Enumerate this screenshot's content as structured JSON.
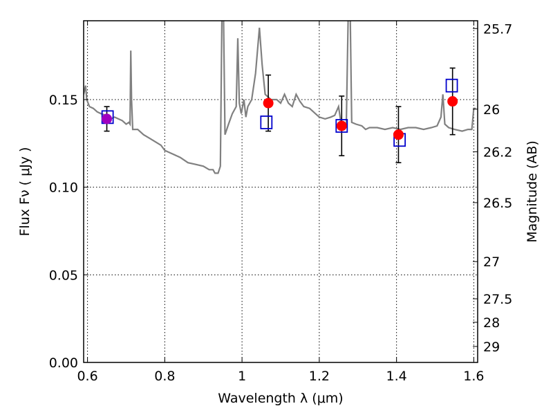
{
  "chart_data": {
    "type": "scatter",
    "title": "",
    "xlabel": "Wavelength  λ (μm)",
    "ylabel": "Flux  Fν  ( μJy )",
    "y2label": "Magnitude (AB)",
    "xlim": [
      0.59,
      1.61
    ],
    "ylim": [
      0.0,
      0.195
    ],
    "grid": true,
    "x_ticks": [
      {
        "value": 0.6,
        "label": "0.6"
      },
      {
        "value": 0.8,
        "label": "0.8"
      },
      {
        "value": 1.0,
        "label": "1"
      },
      {
        "value": 1.2,
        "label": "1.2"
      },
      {
        "value": 1.4,
        "label": "1.4"
      },
      {
        "value": 1.6,
        "label": "1.6"
      }
    ],
    "y_ticks": [
      {
        "value": 0.0,
        "label": "0.00"
      },
      {
        "value": 0.05,
        "label": "0.05"
      },
      {
        "value": 0.1,
        "label": "0.10"
      },
      {
        "value": 0.15,
        "label": "0.15"
      }
    ],
    "y2_ticks": [
      {
        "mag": 25.7,
        "label": "25.7"
      },
      {
        "mag": 26,
        "label": "26"
      },
      {
        "mag": 26.2,
        "label": "26.2"
      },
      {
        "mag": 26.5,
        "label": "26.5"
      },
      {
        "mag": 27,
        "label": "27"
      },
      {
        "mag": 27.5,
        "label": "27.5"
      },
      {
        "mag": 28,
        "label": "28"
      },
      {
        "mag": 29,
        "label": "29"
      }
    ],
    "series": [
      {
        "type": "line",
        "color": "#808080",
        "points": [
          [
            0.59,
            0.153
          ],
          [
            0.595,
            0.158
          ],
          [
            0.598,
            0.15
          ],
          [
            0.605,
            0.146
          ],
          [
            0.615,
            0.145
          ],
          [
            0.625,
            0.143
          ],
          [
            0.635,
            0.142
          ],
          [
            0.648,
            0.141
          ],
          [
            0.66,
            0.139
          ],
          [
            0.67,
            0.14
          ],
          [
            0.68,
            0.139
          ],
          [
            0.69,
            0.138
          ],
          [
            0.7,
            0.136
          ],
          [
            0.707,
            0.137
          ],
          [
            0.71,
            0.136
          ],
          [
            0.712,
            0.178
          ],
          [
            0.714,
            0.15
          ],
          [
            0.717,
            0.133
          ],
          [
            0.73,
            0.133
          ],
          [
            0.745,
            0.13
          ],
          [
            0.76,
            0.128
          ],
          [
            0.775,
            0.126
          ],
          [
            0.79,
            0.124
          ],
          [
            0.8,
            0.121
          ],
          [
            0.82,
            0.119
          ],
          [
            0.84,
            0.117
          ],
          [
            0.86,
            0.114
          ],
          [
            0.88,
            0.113
          ],
          [
            0.9,
            0.112
          ],
          [
            0.915,
            0.11
          ],
          [
            0.925,
            0.11
          ],
          [
            0.93,
            0.108
          ],
          [
            0.938,
            0.108
          ],
          [
            0.944,
            0.112
          ],
          [
            0.948,
            0.2
          ],
          [
            0.952,
            0.2
          ],
          [
            0.956,
            0.13
          ],
          [
            0.965,
            0.136
          ],
          [
            0.975,
            0.142
          ],
          [
            0.985,
            0.146
          ],
          [
            0.989,
            0.185
          ],
          [
            0.993,
            0.148
          ],
          [
            0.998,
            0.142
          ],
          [
            1.005,
            0.15
          ],
          [
            1.01,
            0.14
          ],
          [
            1.015,
            0.146
          ],
          [
            1.025,
            0.15
          ],
          [
            1.035,
            0.165
          ],
          [
            1.045,
            0.191
          ],
          [
            1.052,
            0.17
          ],
          [
            1.06,
            0.153
          ],
          [
            1.075,
            0.15
          ],
          [
            1.09,
            0.15
          ],
          [
            1.1,
            0.148
          ],
          [
            1.11,
            0.153
          ],
          [
            1.12,
            0.148
          ],
          [
            1.13,
            0.146
          ],
          [
            1.14,
            0.153
          ],
          [
            1.15,
            0.149
          ],
          [
            1.16,
            0.146
          ],
          [
            1.175,
            0.145
          ],
          [
            1.19,
            0.142
          ],
          [
            1.2,
            0.14
          ],
          [
            1.215,
            0.139
          ],
          [
            1.23,
            0.14
          ],
          [
            1.24,
            0.141
          ],
          [
            1.25,
            0.146
          ],
          [
            1.256,
            0.137
          ],
          [
            1.262,
            0.135
          ],
          [
            1.27,
            0.136
          ],
          [
            1.275,
            0.2
          ],
          [
            1.28,
            0.2
          ],
          [
            1.284,
            0.137
          ],
          [
            1.295,
            0.136
          ],
          [
            1.31,
            0.135
          ],
          [
            1.32,
            0.133
          ],
          [
            1.33,
            0.134
          ],
          [
            1.35,
            0.134
          ],
          [
            1.37,
            0.133
          ],
          [
            1.39,
            0.134
          ],
          [
            1.41,
            0.133
          ],
          [
            1.43,
            0.134
          ],
          [
            1.45,
            0.134
          ],
          [
            1.47,
            0.133
          ],
          [
            1.49,
            0.134
          ],
          [
            1.505,
            0.135
          ],
          [
            1.515,
            0.14
          ],
          [
            1.52,
            0.153
          ],
          [
            1.525,
            0.136
          ],
          [
            1.535,
            0.134
          ],
          [
            1.55,
            0.133
          ],
          [
            1.57,
            0.132
          ],
          [
            1.585,
            0.133
          ],
          [
            1.595,
            0.133
          ],
          [
            1.6,
            0.145
          ],
          [
            1.605,
            0.145
          ]
        ]
      },
      {
        "type": "scatter",
        "marker": "circle",
        "color": "#ff0000",
        "points": [
          {
            "x": 0.65,
            "y": 0.139,
            "err": 0.007,
            "color": "#a000c0"
          },
          {
            "x": 1.068,
            "y": 0.148,
            "err": 0.016
          },
          {
            "x": 1.258,
            "y": 0.135,
            "err": 0.017
          },
          {
            "x": 1.405,
            "y": 0.13,
            "err": 0.016
          },
          {
            "x": 1.545,
            "y": 0.149,
            "err": 0.019
          }
        ]
      },
      {
        "type": "scatter",
        "marker": "open-square",
        "color": "#0000cc",
        "points": [
          {
            "x": 0.652,
            "y": 0.14
          },
          {
            "x": 1.063,
            "y": 0.137
          },
          {
            "x": 1.258,
            "y": 0.135
          },
          {
            "x": 1.408,
            "y": 0.127
          },
          {
            "x": 1.543,
            "y": 0.158
          }
        ]
      }
    ]
  }
}
